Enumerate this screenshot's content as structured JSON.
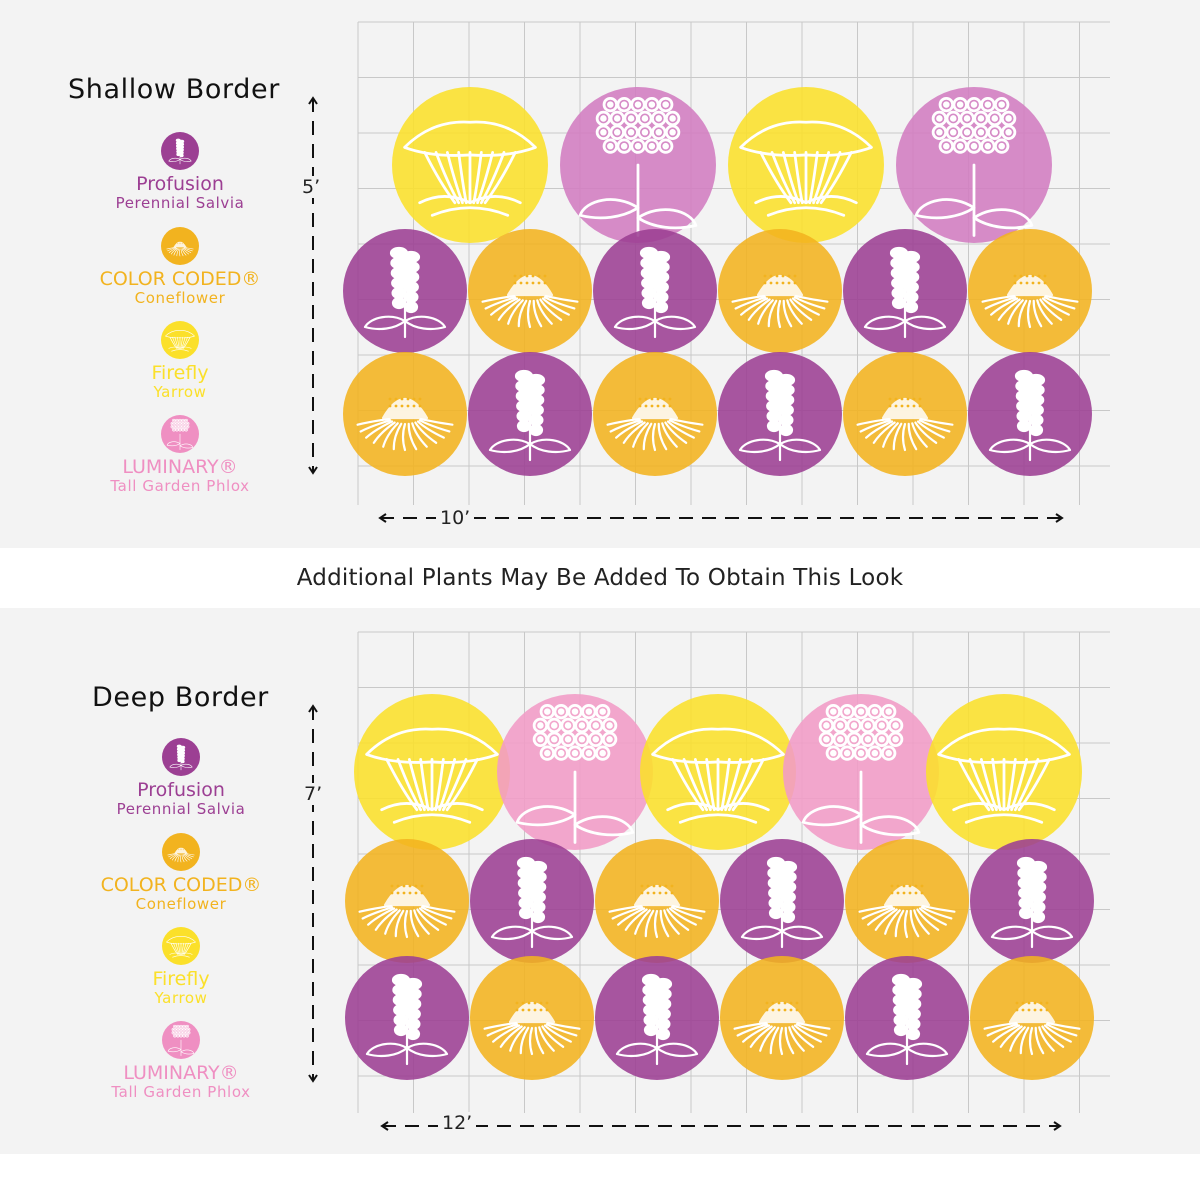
{
  "colors": {
    "salvia": "#9c3f93",
    "coneflower": "#f2b31f",
    "yarrow": "#fbe02a",
    "phlox_top": "#d17cc0",
    "phlox_bottom": "#f19bc6",
    "background": "#f3f3f3",
    "grid": "#c8c8c8"
  },
  "icons": {
    "salvia": "salvia-flower-icon",
    "coneflower": "coneflower-icon",
    "yarrow": "yarrow-icon",
    "phlox": "phlox-icon"
  },
  "middle_note": "Additional Plants May Be Added To Obtain This Look",
  "borders": [
    {
      "title": "Shallow Border",
      "height_label": "5’",
      "width_label": "10’",
      "phlox_color": "#d17cc0",
      "legend": [
        {
          "name": "Profusion",
          "sub": "Perennial Salvia",
          "plant": "salvia",
          "color": "#9c3f93"
        },
        {
          "name": "COLOR CODED®",
          "sub": "Coneflower",
          "plant": "coneflower",
          "color": "#f2b31f"
        },
        {
          "name": "Firefly",
          "sub": "Yarrow",
          "plant": "yarrow",
          "color": "#fbe02a"
        },
        {
          "name": "LUMINARY®",
          "sub": "Tall Garden Phlox",
          "plant": "phlox",
          "color": "#ef8fc2"
        }
      ],
      "rows": [
        [
          "yarrow",
          "phlox",
          "yarrow",
          "phlox"
        ],
        [
          "salvia",
          "coneflower",
          "salvia",
          "coneflower",
          "salvia",
          "coneflower"
        ],
        [
          "coneflower",
          "salvia",
          "coneflower",
          "salvia",
          "coneflower",
          "salvia"
        ]
      ]
    },
    {
      "title": "Deep Border",
      "height_label": "7’",
      "width_label": "12’",
      "phlox_color": "#f19bc6",
      "legend": [
        {
          "name": "Profusion",
          "sub": "Perennial Salvia",
          "plant": "salvia",
          "color": "#9c3f93"
        },
        {
          "name": "COLOR CODED®",
          "sub": "Coneflower",
          "plant": "coneflower",
          "color": "#f2b31f"
        },
        {
          "name": "Firefly",
          "sub": "Yarrow",
          "plant": "yarrow",
          "color": "#fbe02a"
        },
        {
          "name": "LUMINARY®",
          "sub": "Tall Garden Phlox",
          "plant": "phlox",
          "color": "#ef8fc2"
        }
      ],
      "rows": [
        [
          "yarrow",
          "phlox",
          "yarrow",
          "phlox",
          "yarrow"
        ],
        [
          "coneflower",
          "salvia",
          "coneflower",
          "salvia",
          "coneflower",
          "salvia"
        ],
        [
          "salvia",
          "coneflower",
          "salvia",
          "coneflower",
          "salvia",
          "coneflower"
        ]
      ]
    }
  ]
}
